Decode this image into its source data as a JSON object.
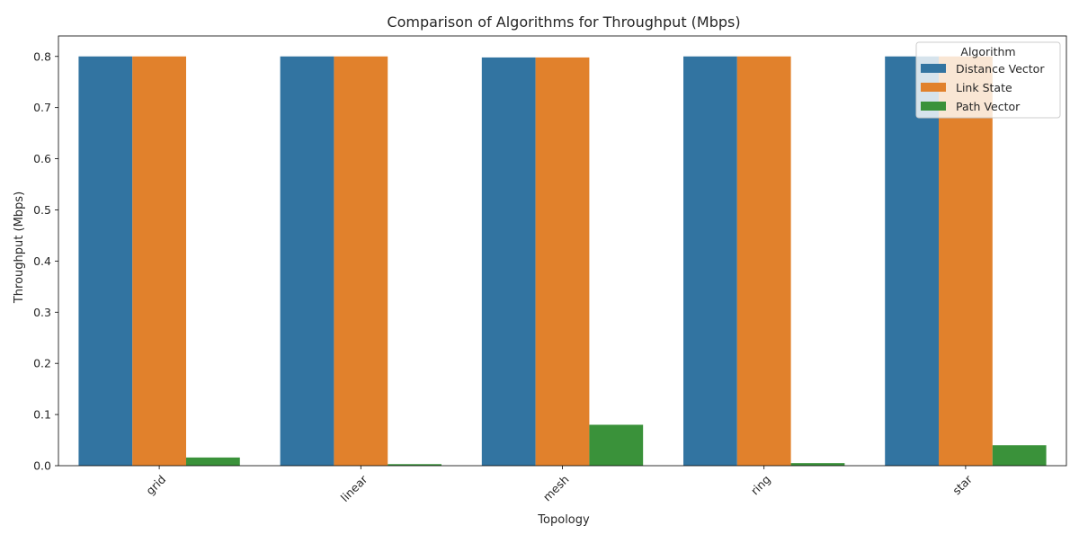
{
  "chart_data": {
    "type": "bar",
    "title": "Comparison of Algorithms for Throughput (Mbps)",
    "xlabel": "Topology",
    "ylabel": "Throughput (Mbps)",
    "categories": [
      "grid",
      "linear",
      "mesh",
      "ring",
      "star"
    ],
    "series": [
      {
        "name": "Distance Vector",
        "color": "#3274a1",
        "values": [
          0.8,
          0.8,
          0.798,
          0.8,
          0.8
        ]
      },
      {
        "name": "Link State",
        "color": "#e1812c",
        "values": [
          0.8,
          0.8,
          0.798,
          0.8,
          0.8
        ]
      },
      {
        "name": "Path Vector",
        "color": "#3a923a",
        "values": [
          0.016,
          0.003,
          0.08,
          0.005,
          0.04
        ]
      }
    ],
    "ylim": [
      0,
      0.84
    ],
    "yticks": [
      0.0,
      0.1,
      0.2,
      0.3,
      0.4,
      0.5,
      0.6,
      0.7,
      0.8
    ],
    "ytick_labels": [
      "0.0",
      "0.1",
      "0.2",
      "0.3",
      "0.4",
      "0.5",
      "0.6",
      "0.7",
      "0.8"
    ],
    "xtick_rotation": 45,
    "grid": false,
    "legend": {
      "title": "Algorithm",
      "position": "top-right"
    }
  }
}
